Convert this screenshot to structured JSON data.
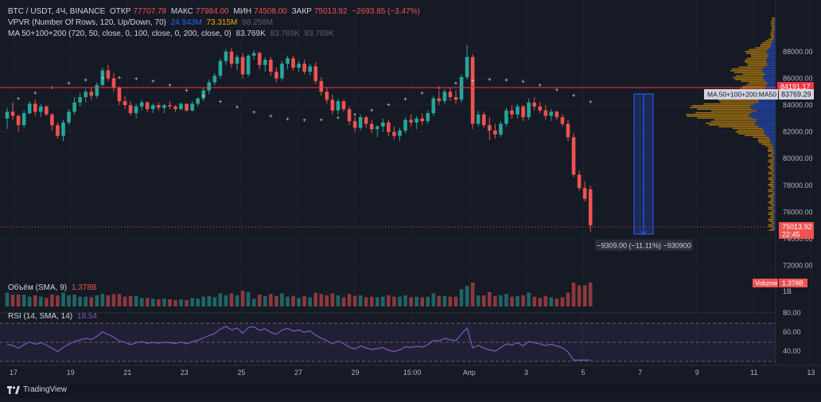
{
  "header": {
    "symbol": "BTC / USDT, 4Ч, BINANCE",
    "o_label": "ОТКР",
    "o": "77707.78",
    "h_label": "МАКС",
    "h": "77984.00",
    "l_label": "МИН",
    "l": "74508.00",
    "c_label": "ЗАКР",
    "c": "75013.92",
    "chg": "−2693.85 (−3.47%)"
  },
  "vpvr": {
    "label": "VPVR (Number Of Rows, 120, Up/Down, 70)",
    "up": "24.943M",
    "down": "73.315M",
    "total": "98.258M"
  },
  "ma": {
    "label": "MA 50+100+200 (720, 50, close, 0, 100, close, 0, 200, close, 0)",
    "v1": "83.769K",
    "v2": "83.769K",
    "v3": "83.769K"
  },
  "volume": {
    "label": "Объём (SMA, 9)",
    "value": "1.378B",
    "badge_label": "Volume",
    "badge_value": "1.378B",
    "axis_tick": "1B"
  },
  "rsi": {
    "label": "RSI (14, SMA, 14)",
    "value": "18.54"
  },
  "price_axis": [
    "88000.00",
    "86000.00",
    "84000.00",
    "82000.00",
    "80000.00",
    "78000.00",
    "76000.00",
    "74000.00",
    "72000.00"
  ],
  "rsi_axis": [
    "80.00",
    "60.00",
    "40.00"
  ],
  "time_axis": [
    "17",
    "19",
    "21",
    "23",
    "25",
    "27",
    "29",
    "15:00",
    "Апр",
    "3",
    "5",
    "7",
    "9",
    "11",
    "13"
  ],
  "labels": {
    "hline_price": "84191.17",
    "ma_tag": "MA 50+100+200:MA50",
    "ma_price": "83769.29",
    "last_price": "75013.92",
    "countdown": "22:45",
    "measure": "−9309.00 (−11.11%) −930900"
  },
  "brand": "TradingView",
  "colors": {
    "up": "#26a69a",
    "down": "#ef5350",
    "hline": "#f23645",
    "ma": "#d1d4dc",
    "vp_up": "#2962ff",
    "vp_down": "#f7a600",
    "rsi": "#7e57c2"
  },
  "chart_data": {
    "type": "candlestick",
    "price_range": [
      71500,
      89600
    ],
    "candles": [
      [
        83000,
        83800,
        82200,
        83500
      ],
      [
        83500,
        84200,
        82900,
        83200
      ],
      [
        83200,
        83300,
        82000,
        82500
      ],
      [
        82500,
        83600,
        82300,
        83400
      ],
      [
        83400,
        84300,
        83300,
        84100
      ],
      [
        84100,
        84400,
        83200,
        83500
      ],
      [
        83500,
        84100,
        83100,
        83900
      ],
      [
        83900,
        84000,
        83200,
        83300
      ],
      [
        83300,
        83400,
        82100,
        82500
      ],
      [
        82500,
        82700,
        81500,
        81700
      ],
      [
        81700,
        82900,
        81300,
        82700
      ],
      [
        82700,
        83700,
        82500,
        83500
      ],
      [
        83500,
        84600,
        83300,
        84200
      ],
      [
        84200,
        84900,
        83900,
        84600
      ],
      [
        84600,
        85200,
        84200,
        85000
      ],
      [
        85000,
        85300,
        84400,
        84700
      ],
      [
        84700,
        85700,
        84500,
        85500
      ],
      [
        85500,
        86800,
        85400,
        86600
      ],
      [
        86600,
        87000,
        85800,
        86000
      ],
      [
        86000,
        86400,
        85000,
        85300
      ],
      [
        85300,
        85400,
        84000,
        84300
      ],
      [
        84300,
        84700,
        83700,
        84000
      ],
      [
        84000,
        84300,
        83200,
        83400
      ],
      [
        83400,
        84100,
        83000,
        83900
      ],
      [
        83900,
        84400,
        83600,
        84200
      ],
      [
        84200,
        84300,
        83500,
        83700
      ],
      [
        83700,
        84100,
        83400,
        84000
      ],
      [
        84000,
        84200,
        83600,
        83800
      ],
      [
        83800,
        84100,
        83400,
        84000
      ],
      [
        84000,
        84300,
        83700,
        83900
      ],
      [
        83900,
        84000,
        83500,
        83700
      ],
      [
        83700,
        84200,
        83600,
        84100
      ],
      [
        84100,
        84000,
        83500,
        83600
      ],
      [
        83600,
        84300,
        83500,
        84100
      ],
      [
        84100,
        84600,
        83900,
        84500
      ],
      [
        84500,
        85300,
        84300,
        85100
      ],
      [
        85100,
        85900,
        84800,
        85700
      ],
      [
        85700,
        86400,
        85500,
        86200
      ],
      [
        86200,
        87500,
        86000,
        87300
      ],
      [
        87300,
        88200,
        87000,
        88000
      ],
      [
        88000,
        88300,
        86800,
        87100
      ],
      [
        87100,
        87800,
        86600,
        87600
      ],
      [
        87600,
        87900,
        86000,
        86300
      ],
      [
        86300,
        87800,
        86100,
        87700
      ],
      [
        87700,
        88100,
        87400,
        87900
      ],
      [
        87900,
        88000,
        86700,
        87000
      ],
      [
        87000,
        87600,
        86500,
        87400
      ],
      [
        87400,
        87600,
        86200,
        86500
      ],
      [
        86500,
        86800,
        85700,
        86000
      ],
      [
        86000,
        87300,
        85800,
        87100
      ],
      [
        87100,
        87700,
        86700,
        87500
      ],
      [
        87500,
        87700,
        86600,
        86800
      ],
      [
        86800,
        87300,
        86500,
        87100
      ],
      [
        87100,
        87400,
        86300,
        86500
      ],
      [
        86500,
        87100,
        86200,
        86900
      ],
      [
        86900,
        87200,
        85600,
        85800
      ],
      [
        85800,
        86100,
        84700,
        85000
      ],
      [
        85000,
        85300,
        84100,
        84400
      ],
      [
        84400,
        84800,
        83300,
        83600
      ],
      [
        83600,
        84500,
        83300,
        84300
      ],
      [
        84300,
        84400,
        83500,
        83700
      ],
      [
        83700,
        83900,
        82500,
        82800
      ],
      [
        82800,
        83100,
        82000,
        82300
      ],
      [
        82300,
        83300,
        82100,
        83100
      ],
      [
        83100,
        83200,
        82300,
        82600
      ],
      [
        82600,
        82900,
        81900,
        82200
      ],
      [
        82200,
        82500,
        81600,
        82400
      ],
      [
        82400,
        83000,
        82000,
        82700
      ],
      [
        82700,
        82900,
        81700,
        82000
      ],
      [
        82000,
        82400,
        81400,
        81700
      ],
      [
        81700,
        82300,
        81300,
        82100
      ],
      [
        82100,
        83100,
        81900,
        82900
      ],
      [
        82900,
        83300,
        82400,
        82700
      ],
      [
        82700,
        83200,
        82200,
        83000
      ],
      [
        83000,
        83400,
        82500,
        82800
      ],
      [
        82800,
        83600,
        82600,
        83400
      ],
      [
        83400,
        84700,
        83200,
        84500
      ],
      [
        84500,
        85100,
        84000,
        84300
      ],
      [
        84300,
        85200,
        84100,
        85000
      ],
      [
        85000,
        85300,
        84300,
        84600
      ],
      [
        84600,
        85100,
        84100,
        84400
      ],
      [
        84400,
        86300,
        84200,
        86100
      ],
      [
        86100,
        88500,
        85900,
        87600
      ],
      [
        87600,
        87800,
        82200,
        82600
      ],
      [
        82600,
        83600,
        82400,
        83300
      ],
      [
        83300,
        83500,
        82300,
        82500
      ],
      [
        82500,
        83100,
        81400,
        82100
      ],
      [
        82100,
        82600,
        81500,
        81800
      ],
      [
        81800,
        82800,
        81600,
        82600
      ],
      [
        82600,
        83800,
        82400,
        83600
      ],
      [
        83600,
        84000,
        83000,
        83300
      ],
      [
        83300,
        84100,
        83000,
        83900
      ],
      [
        83900,
        84000,
        82800,
        83100
      ],
      [
        83100,
        84500,
        82900,
        84200
      ],
      [
        84200,
        84600,
        83600,
        83900
      ],
      [
        83900,
        84200,
        83400,
        83600
      ],
      [
        83600,
        84000,
        82900,
        83200
      ],
      [
        83200,
        83700,
        82800,
        83500
      ],
      [
        83500,
        83600,
        82900,
        83100
      ],
      [
        83100,
        83300,
        82400,
        82600
      ],
      [
        82600,
        82900,
        81300,
        81600
      ],
      [
        81600,
        81900,
        78600,
        78800
      ],
      [
        78800,
        79100,
        77600,
        77800
      ],
      [
        77800,
        78300,
        76800,
        77000
      ],
      [
        77700,
        77980,
        74508,
        75014
      ]
    ]
  }
}
